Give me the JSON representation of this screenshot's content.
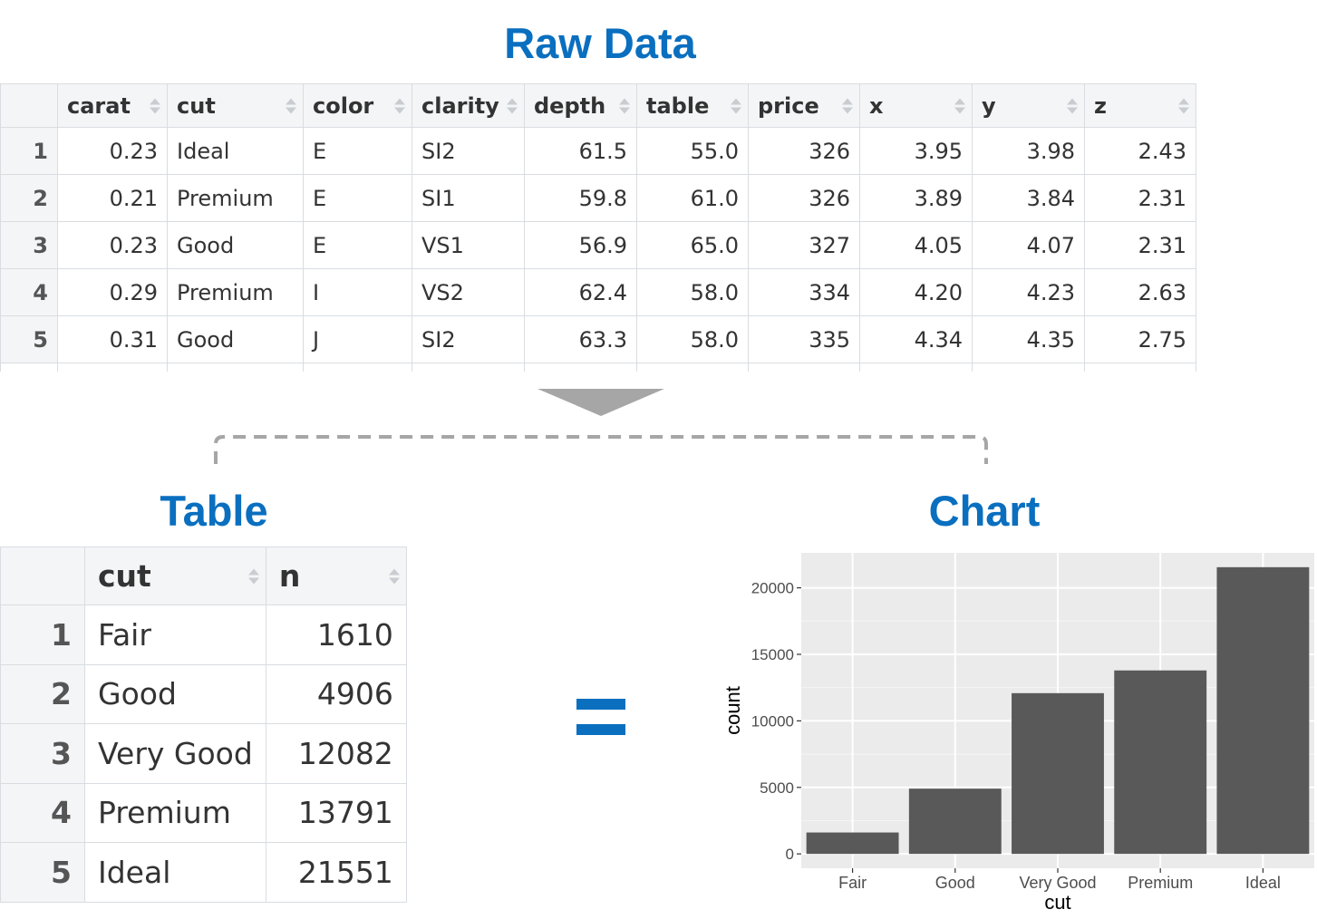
{
  "raw": {
    "title": "Raw Data",
    "columns": [
      "carat",
      "cut",
      "color",
      "clarity",
      "depth",
      "table",
      "price",
      "x",
      "y",
      "z"
    ],
    "rows": [
      [
        "1",
        "0.23",
        "Ideal",
        "E",
        "SI2",
        "61.5",
        "55.0",
        "326",
        "3.95",
        "3.98",
        "2.43"
      ],
      [
        "2",
        "0.21",
        "Premium",
        "E",
        "SI1",
        "59.8",
        "61.0",
        "326",
        "3.89",
        "3.84",
        "2.31"
      ],
      [
        "3",
        "0.23",
        "Good",
        "E",
        "VS1",
        "56.9",
        "65.0",
        "327",
        "4.05",
        "4.07",
        "2.31"
      ],
      [
        "4",
        "0.29",
        "Premium",
        "I",
        "VS2",
        "62.4",
        "58.0",
        "334",
        "4.20",
        "4.23",
        "2.63"
      ],
      [
        "5",
        "0.31",
        "Good",
        "J",
        "SI2",
        "63.3",
        "58.0",
        "335",
        "4.34",
        "4.35",
        "2.75"
      ]
    ]
  },
  "summary": {
    "title": "Table",
    "columns": [
      "cut",
      "n"
    ],
    "rows": [
      [
        "1",
        "Fair",
        "1610"
      ],
      [
        "2",
        "Good",
        "4906"
      ],
      [
        "3",
        "Very Good",
        "12082"
      ],
      [
        "4",
        "Premium",
        "13791"
      ],
      [
        "5",
        "Ideal",
        "21551"
      ]
    ]
  },
  "chart_title": "Chart",
  "colors": {
    "accent": "#0a6fbf",
    "bar_fill": "#595959",
    "panel_bg": "#ebebeb",
    "connector_gray": "#a6a6a6"
  },
  "chart_data": {
    "type": "bar",
    "categories": [
      "Fair",
      "Good",
      "Very Good",
      "Premium",
      "Ideal"
    ],
    "values": [
      1610,
      4906,
      12082,
      13791,
      21551
    ],
    "title": "",
    "xlabel": "cut",
    "ylabel": "count",
    "ylim": [
      -1078,
      22629
    ],
    "yticks": [
      0,
      5000,
      10000,
      15000,
      20000
    ],
    "grid": true,
    "legend": "none"
  }
}
